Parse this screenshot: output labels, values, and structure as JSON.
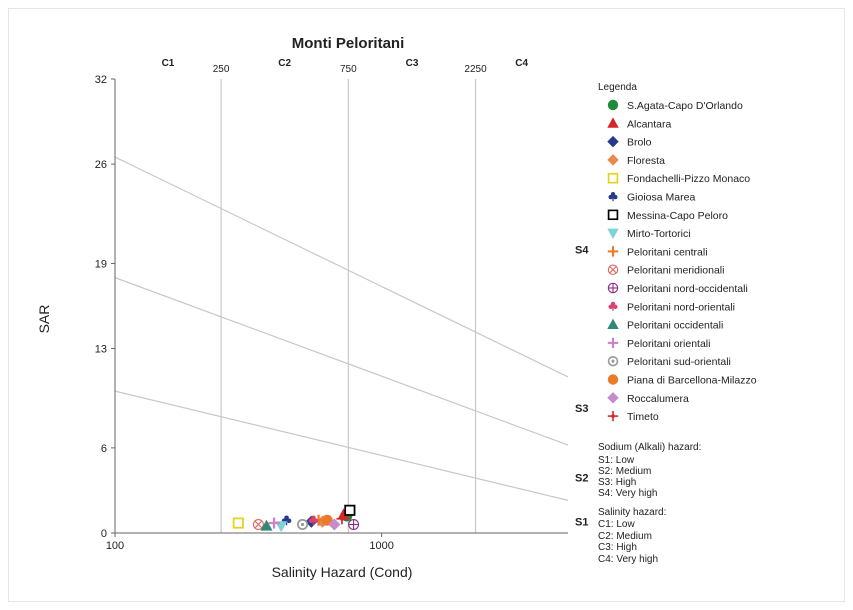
{
  "chart_data": {
    "type": "scatter",
    "title": "Monti Peloritani",
    "xlabel": "Salinity Hazard (Cond)",
    "ylabel": "SAR",
    "x_scale": "log",
    "xlim": [
      100,
      5000
    ],
    "ylim": [
      0,
      32
    ],
    "x_ticks": [
      {
        "value": 100,
        "label": "100"
      },
      {
        "value": 1000,
        "label": "1000"
      }
    ],
    "y_ticks": [
      {
        "value": 0,
        "label": "0"
      },
      {
        "value": 6,
        "label": "6"
      },
      {
        "value": 13,
        "label": "13"
      },
      {
        "value": 19,
        "label": "19"
      },
      {
        "value": 26,
        "label": "26"
      },
      {
        "value": 32,
        "label": "32"
      }
    ],
    "salinity_bounds": [
      {
        "value": 250,
        "label": "250"
      },
      {
        "value": 750,
        "label": "750"
      },
      {
        "value": 2250,
        "label": "2250"
      }
    ],
    "salinity_classes": [
      {
        "label": "C1",
        "center": 158
      },
      {
        "label": "C2",
        "center": 433
      },
      {
        "label": "C3",
        "center": 1300
      },
      {
        "label": "C4",
        "center": 3350
      }
    ],
    "sodium_boundaries": [
      {
        "name": "S1/S2",
        "points": [
          [
            100,
            10
          ],
          [
            5000,
            2.3
          ]
        ]
      },
      {
        "name": "S2/S3",
        "points": [
          [
            100,
            18
          ],
          [
            5000,
            6.2
          ]
        ]
      },
      {
        "name": "S3/S4",
        "points": [
          [
            100,
            26.5
          ],
          [
            5000,
            11.0
          ]
        ]
      }
    ],
    "sodium_classes": [
      {
        "label": "S4",
        "sar": 20.0
      },
      {
        "label": "S3",
        "sar": 8.8
      },
      {
        "label": "S2",
        "sar": 3.9
      },
      {
        "label": "S1",
        "sar": 0.8
      }
    ],
    "grid": false,
    "legend_title": "Legenda",
    "legend_position": "right",
    "series": [
      {
        "name": "S.Agata-Capo D'Orlando",
        "marker": "circle",
        "color": "#1f8a3b",
        "points": [
          [
            740,
            1.2
          ]
        ]
      },
      {
        "name": "Alcantara",
        "marker": "triangle",
        "color": "#d6262b",
        "points": [
          [
            720,
            1.3
          ]
        ]
      },
      {
        "name": "Brolo",
        "marker": "diamond",
        "color": "#253a8c",
        "points": [
          [
            545,
            0.8
          ]
        ]
      },
      {
        "name": "Floresta",
        "marker": "diamond",
        "color": "#e8894d",
        "points": [
          [
            600,
            0.8
          ]
        ]
      },
      {
        "name": "Fondachelli-Pizzo Monaco",
        "marker": "open-square",
        "color": "#e5d21d",
        "points": [
          [
            290,
            0.7
          ]
        ]
      },
      {
        "name": "Gioiosa Marea",
        "marker": "club",
        "color": "#253a8c",
        "points": [
          [
            440,
            0.9
          ]
        ]
      },
      {
        "name": "Messina-Capo Peloro",
        "marker": "open-square",
        "color": "#000000",
        "points": [
          [
            760,
            1.6
          ]
        ]
      },
      {
        "name": "Mirto-Tortorici",
        "marker": "triangle-down",
        "color": "#7fd3d8",
        "points": [
          [
            420,
            0.5
          ]
        ]
      },
      {
        "name": "Peloritani centrali",
        "marker": "plus",
        "color": "#ec7a2b",
        "points": [
          [
            580,
            0.9
          ]
        ]
      },
      {
        "name": "Peloritani meridionali",
        "marker": "circle-x",
        "color": "#e0655e",
        "points": [
          [
            345,
            0.6
          ]
        ]
      },
      {
        "name": "Peloritani nord-occidentali",
        "marker": "circle-plus",
        "color": "#8e2a8a",
        "points": [
          [
            785,
            0.6
          ]
        ]
      },
      {
        "name": "Peloritani nord-orientali",
        "marker": "club",
        "color": "#d8436e",
        "points": [
          [
            555,
            0.9
          ]
        ]
      },
      {
        "name": "Peloritani occidentali",
        "marker": "triangle",
        "color": "#2e8a77",
        "points": [
          [
            370,
            0.5
          ]
        ]
      },
      {
        "name": "Peloritani orientali",
        "marker": "plus",
        "color": "#d27fc7",
        "points": [
          [
            395,
            0.7
          ]
        ]
      },
      {
        "name": "Peloritani sud-orientali",
        "marker": "circle-dot",
        "color": "#9a9a9a",
        "points": [
          [
            505,
            0.6
          ]
        ]
      },
      {
        "name": "Piana di Barcellona-Milazzo",
        "marker": "circle",
        "color": "#ec7a2b",
        "points": [
          [
            625,
            0.9
          ]
        ]
      },
      {
        "name": "Roccalumera",
        "marker": "diamond",
        "color": "#c58cc9",
        "points": [
          [
            665,
            0.6
          ]
        ]
      },
      {
        "name": "Timeto",
        "marker": "star",
        "color": "#d6262b",
        "points": [
          [
            710,
            1.0
          ]
        ]
      }
    ],
    "notes": [
      {
        "text": "Sodium (Alkali) hazard:"
      },
      {
        "text": "S1: Low"
      },
      {
        "text": "S2: Medium"
      },
      {
        "text": "S3: High"
      },
      {
        "text": "S4: Very high"
      },
      {
        "text": "Salinity hazard:"
      },
      {
        "text": "C1: Low"
      },
      {
        "text": "C2: Medium"
      },
      {
        "text": "C3: High"
      },
      {
        "text": "C4: Very high"
      }
    ]
  }
}
